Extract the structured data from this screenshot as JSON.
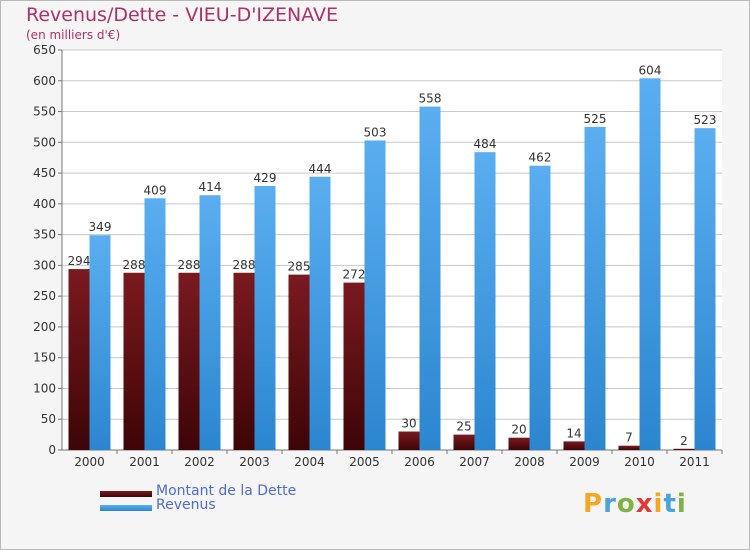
{
  "chart_data": {
    "type": "bar",
    "title": "Revenus/Dette - VIEU-D'IZENAVE",
    "subtitle": "(en milliers d'€)",
    "categories": [
      "2000",
      "2001",
      "2002",
      "2003",
      "2004",
      "2005",
      "2006",
      "2007",
      "2008",
      "2009",
      "2010",
      "2011"
    ],
    "series": [
      {
        "name": "Montant de la Dette",
        "values": [
          294,
          288,
          288,
          288,
          285,
          272,
          30,
          25,
          20,
          14,
          7,
          2
        ],
        "color": "#7a1a1f",
        "color_dark": "#3d0508"
      },
      {
        "name": "Revenus",
        "values": [
          349,
          409,
          414,
          429,
          444,
          503,
          558,
          484,
          462,
          525,
          604,
          523
        ],
        "color": "#5aaef0",
        "color_dark": "#2c86cf"
      }
    ],
    "ylim": [
      0,
      650
    ],
    "yticks": [
      0,
      50,
      100,
      150,
      200,
      250,
      300,
      350,
      400,
      450,
      500,
      550,
      600,
      650
    ],
    "grid": true,
    "legend_position": "bottom-left"
  },
  "logo": {
    "letters": [
      "P",
      "r",
      "o",
      "x",
      "i",
      "t",
      "i"
    ],
    "colors": [
      "#f5a623",
      "#4aa3df",
      "#7cb342",
      "#e53935",
      "#f5a623",
      "#4aa3df",
      "#7cb342"
    ]
  }
}
